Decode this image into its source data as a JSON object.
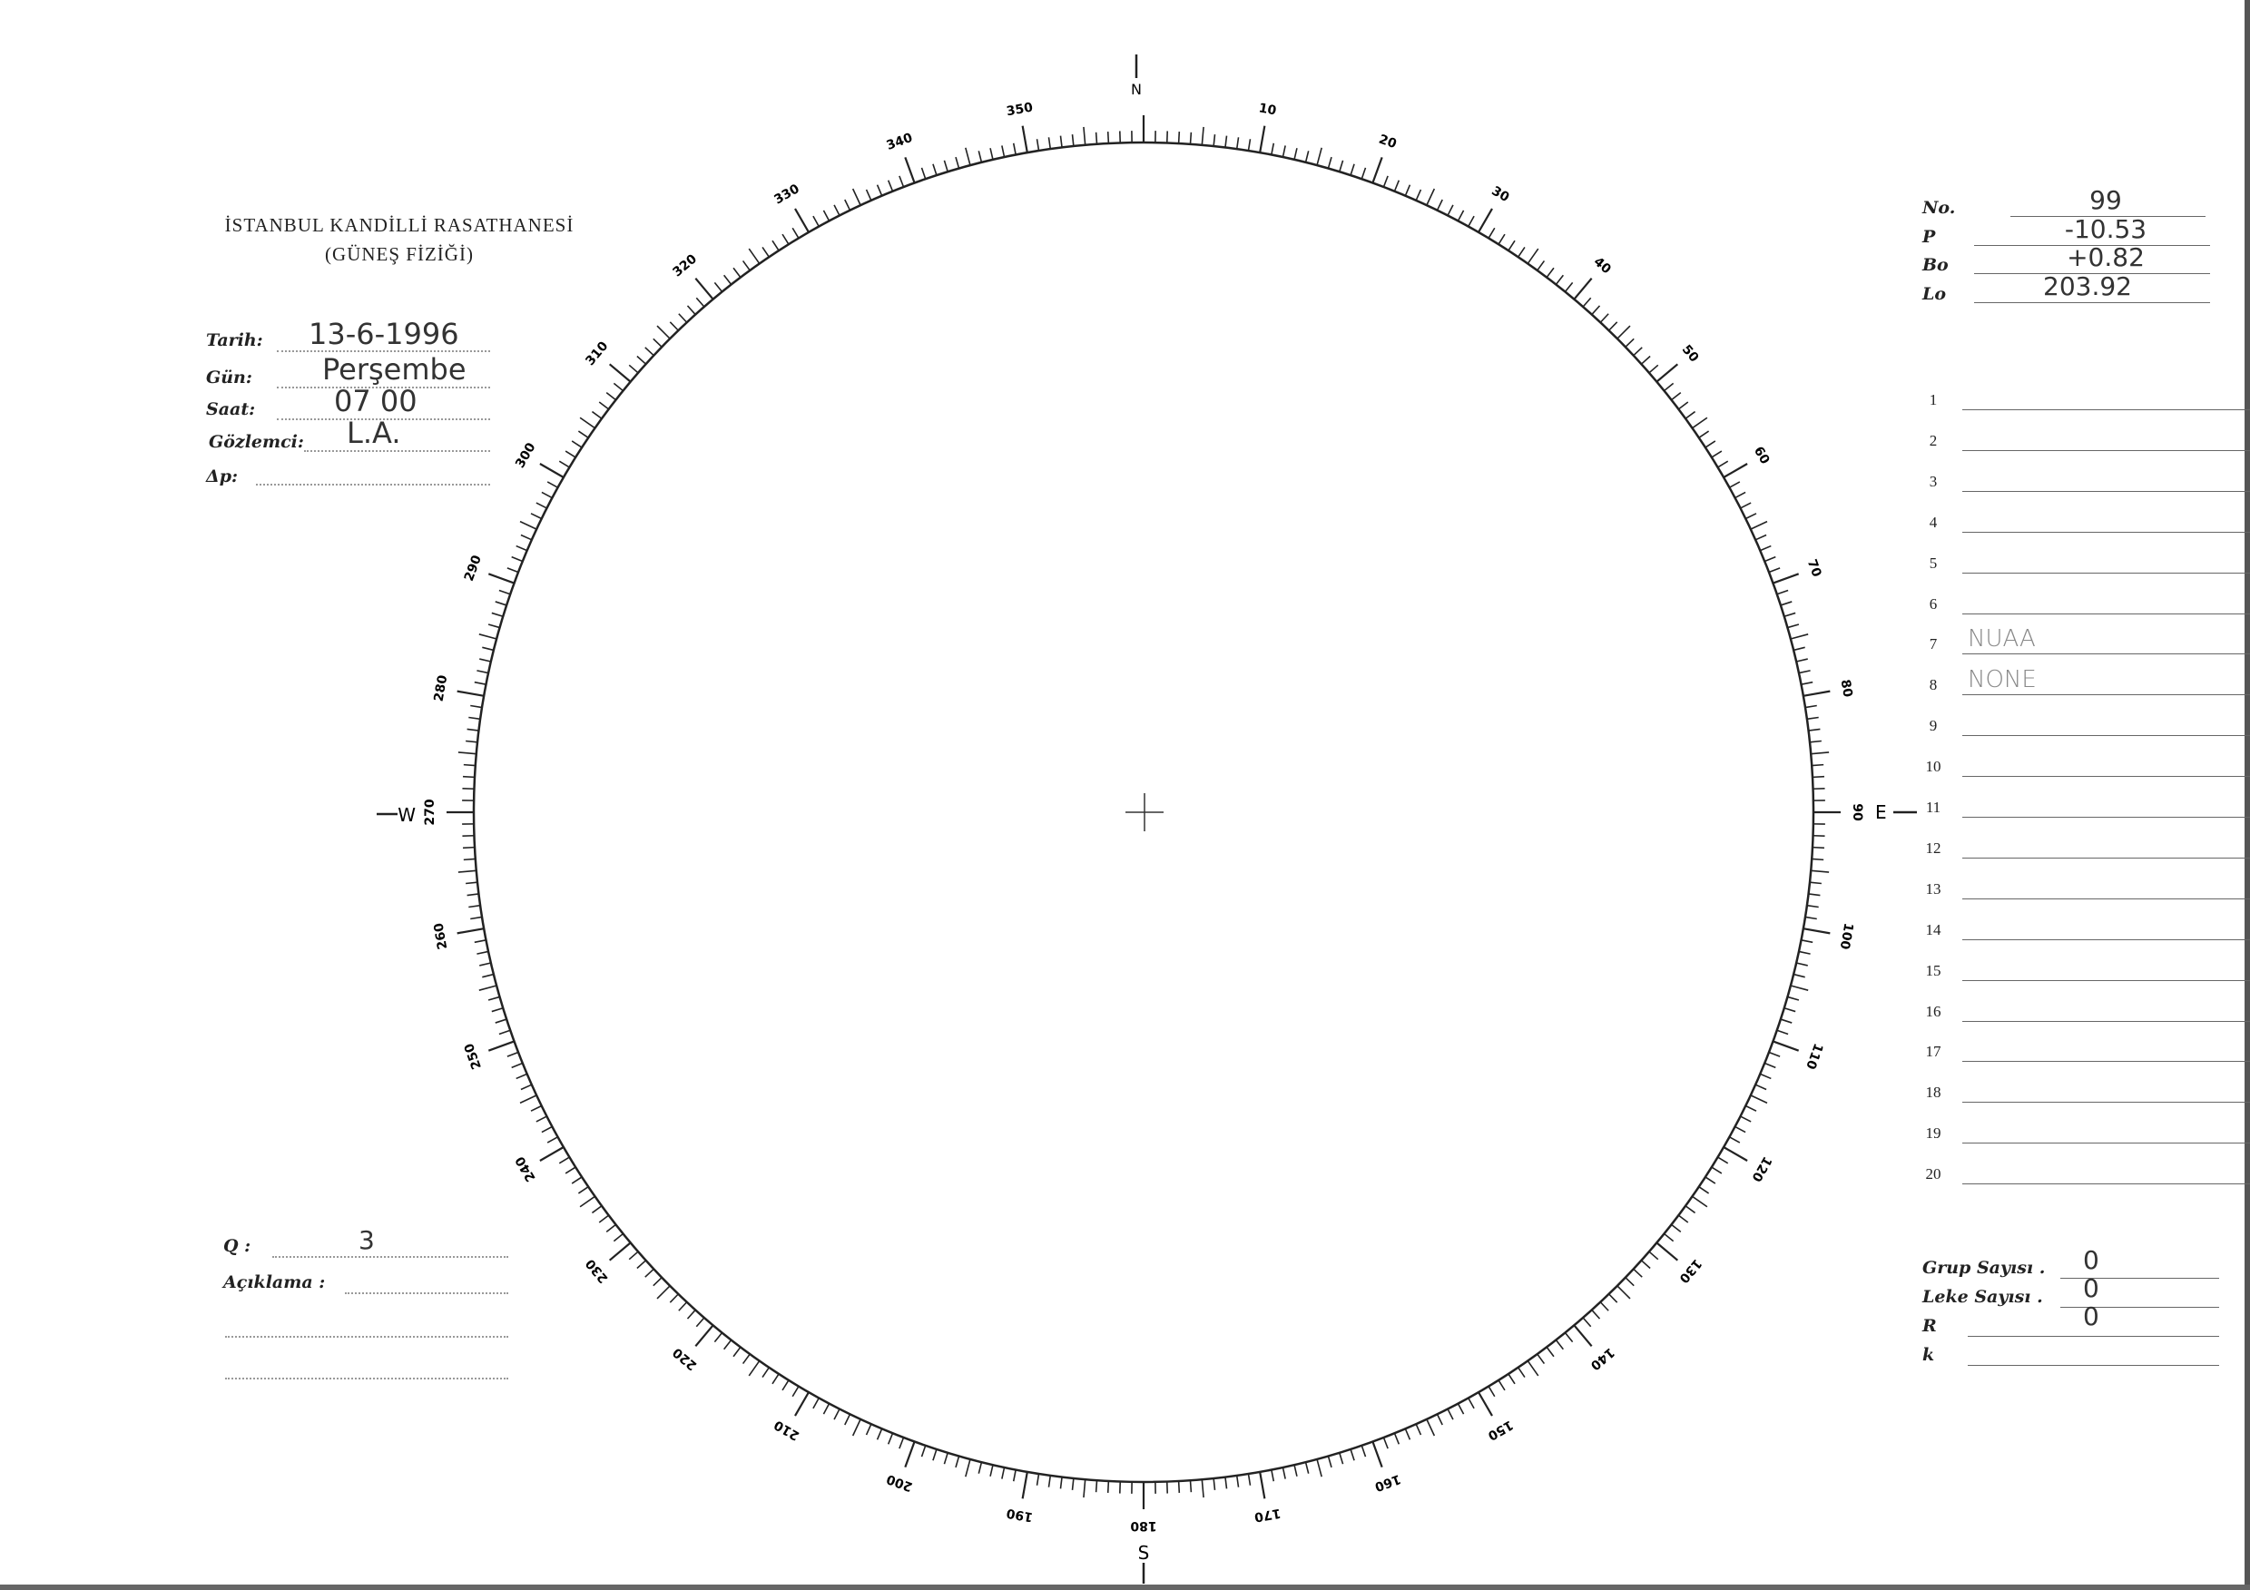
{
  "header": {
    "title_line1": "İSTANBUL KANDİLLİ RASATHANESİ",
    "title_line2": "(GÜNEŞ FİZİĞİ)"
  },
  "observation": {
    "tarih_label": "Tarih:",
    "tarih_value": "13-6-1996",
    "gun_label": "Gün:",
    "gun_value": "Perşembe",
    "saat_label": "Saat:",
    "saat_value": "07 00",
    "gozlemci_label": "Gözlemci:",
    "gozlemci_value": "L.A.",
    "dp_label": "Δp:",
    "dp_value": ""
  },
  "solar_params": [
    {
      "label": "No.",
      "value": "99"
    },
    {
      "label": "P",
      "value": "-10.53"
    },
    {
      "label": "Bo",
      "value": "+0.82"
    },
    {
      "label": "Lo",
      "value": "203.92"
    }
  ],
  "groups": [
    {
      "n": "1",
      "note": ""
    },
    {
      "n": "2",
      "note": ""
    },
    {
      "n": "3",
      "note": ""
    },
    {
      "n": "4",
      "note": ""
    },
    {
      "n": "5",
      "note": ""
    },
    {
      "n": "6",
      "note": ""
    },
    {
      "n": "7",
      "note": "NUAA"
    },
    {
      "n": "8",
      "note": "NONE"
    },
    {
      "n": "9",
      "note": ""
    },
    {
      "n": "10",
      "note": ""
    },
    {
      "n": "11",
      "note": ""
    },
    {
      "n": "12",
      "note": ""
    },
    {
      "n": "13",
      "note": ""
    },
    {
      "n": "14",
      "note": ""
    },
    {
      "n": "15",
      "note": ""
    },
    {
      "n": "16",
      "note": ""
    },
    {
      "n": "17",
      "note": ""
    },
    {
      "n": "18",
      "note": ""
    },
    {
      "n": "19",
      "note": ""
    },
    {
      "n": "20",
      "note": ""
    }
  ],
  "summary": [
    {
      "label": "Grup Sayısı .",
      "value": "0"
    },
    {
      "label": "Leke Sayısı .",
      "value": "0"
    },
    {
      "label": "R",
      "value": "0"
    },
    {
      "label": "k",
      "value": ""
    }
  ],
  "quality": {
    "q_label": "Q :",
    "q_value": "3",
    "aciklama_label": "Açıklama :",
    "aciklama_value": ""
  },
  "disk": {
    "scale_max": 360,
    "major_step": 10,
    "minor_step": 1,
    "cardinal_N": "N",
    "cardinal_E": "E",
    "cardinal_S": "S",
    "cardinal_W": "W"
  }
}
